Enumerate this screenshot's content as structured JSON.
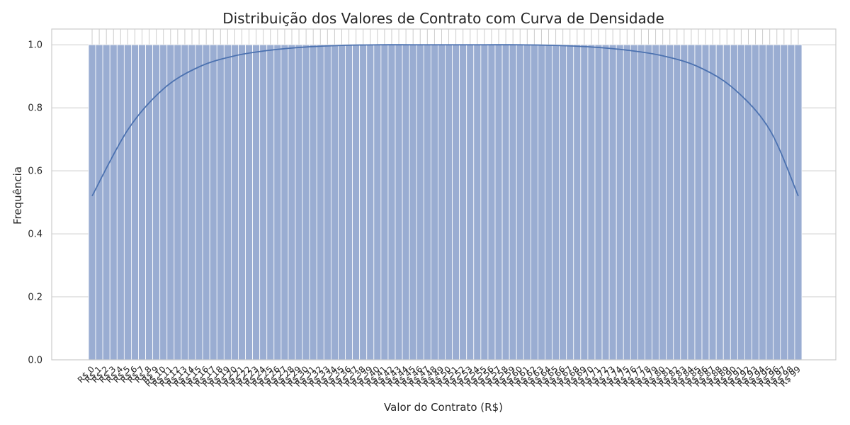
{
  "chart_data": {
    "type": "bar",
    "title": "Distribuição dos Valores de Contrato com Curva de Densidade",
    "xlabel": "Valor do Contrato (R$)",
    "ylabel": "Frequência",
    "ylim": [
      0,
      1.05
    ],
    "yticks": [
      0.0,
      0.2,
      0.4,
      0.6,
      0.8,
      1.0
    ],
    "ytick_labels": [
      "0.0",
      "0.2",
      "0.4",
      "0.6",
      "0.8",
      "1.0"
    ],
    "grid": true,
    "categories": [
      "R$ 0",
      "R$ 1",
      "R$ 2",
      "R$ 3",
      "R$ 4",
      "R$ 5",
      "R$ 6",
      "R$ 7",
      "R$ 8",
      "R$ 9",
      "R$ 10",
      "R$ 11",
      "R$ 12",
      "R$ 13",
      "R$ 14",
      "R$ 15",
      "R$ 16",
      "R$ 17",
      "R$ 18",
      "R$ 19",
      "R$ 20",
      "R$ 21",
      "R$ 22",
      "R$ 23",
      "R$ 24",
      "R$ 25",
      "R$ 26",
      "R$ 27",
      "R$ 28",
      "R$ 29",
      "R$ 30",
      "R$ 31",
      "R$ 32",
      "R$ 33",
      "R$ 34",
      "R$ 35",
      "R$ 36",
      "R$ 37",
      "R$ 38",
      "R$ 39",
      "R$ 40",
      "R$ 41",
      "R$ 42",
      "R$ 43",
      "R$ 44",
      "R$ 45",
      "R$ 46",
      "R$ 47",
      "R$ 48",
      "R$ 49",
      "R$ 50",
      "R$ 51",
      "R$ 52",
      "R$ 53",
      "R$ 54",
      "R$ 55",
      "R$ 56",
      "R$ 57",
      "R$ 58",
      "R$ 59",
      "R$ 60",
      "R$ 61",
      "R$ 62",
      "R$ 63",
      "R$ 64",
      "R$ 65",
      "R$ 66",
      "R$ 67",
      "R$ 68",
      "R$ 69",
      "R$ 70",
      "R$ 71",
      "R$ 72",
      "R$ 73",
      "R$ 74",
      "R$ 75",
      "R$ 76",
      "R$ 77",
      "R$ 78",
      "R$ 79",
      "R$ 80",
      "R$ 81",
      "R$ 82",
      "R$ 83",
      "R$ 84",
      "R$ 85",
      "R$ 86",
      "R$ 87",
      "R$ 88",
      "R$ 89",
      "R$ 90",
      "R$ 91",
      "R$ 92",
      "R$ 93",
      "R$ 94",
      "R$ 95",
      "R$ 96",
      "R$ 97",
      "R$ 98",
      "R$ 99"
    ],
    "values": [
      1,
      1,
      1,
      1,
      1,
      1,
      1,
      1,
      1,
      1,
      1,
      1,
      1,
      1,
      1,
      1,
      1,
      1,
      1,
      1,
      1,
      1,
      1,
      1,
      1,
      1,
      1,
      1,
      1,
      1,
      1,
      1,
      1,
      1,
      1,
      1,
      1,
      1,
      1,
      1,
      1,
      1,
      1,
      1,
      1,
      1,
      1,
      1,
      1,
      1,
      1,
      1,
      1,
      1,
      1,
      1,
      1,
      1,
      1,
      1,
      1,
      1,
      1,
      1,
      1,
      1,
      1,
      1,
      1,
      1,
      1,
      1,
      1,
      1,
      1,
      1,
      1,
      1,
      1,
      1,
      1,
      1,
      1,
      1,
      1,
      1,
      1,
      1,
      1,
      1,
      1,
      1,
      1,
      1,
      1,
      1,
      1,
      1,
      1,
      1
    ],
    "density_curve": {
      "x": [
        0,
        5,
        10,
        15,
        20,
        25,
        30,
        35,
        40,
        45,
        50,
        55,
        60,
        65,
        70,
        75,
        80,
        85,
        90,
        95,
        99
      ],
      "y": [
        0.52,
        0.73,
        0.86,
        0.93,
        0.965,
        0.983,
        0.993,
        0.998,
        1.0,
        1.0,
        1.0,
        1.0,
        1.0,
        0.998,
        0.993,
        0.983,
        0.965,
        0.93,
        0.86,
        0.73,
        0.52
      ]
    },
    "colors": {
      "bar_fill": "#9aadd2",
      "bar_edge": "#ffffff",
      "curve": "#4c72b0",
      "grid": "#cccccc",
      "frame": "#cccccc",
      "text": "#262626"
    }
  }
}
